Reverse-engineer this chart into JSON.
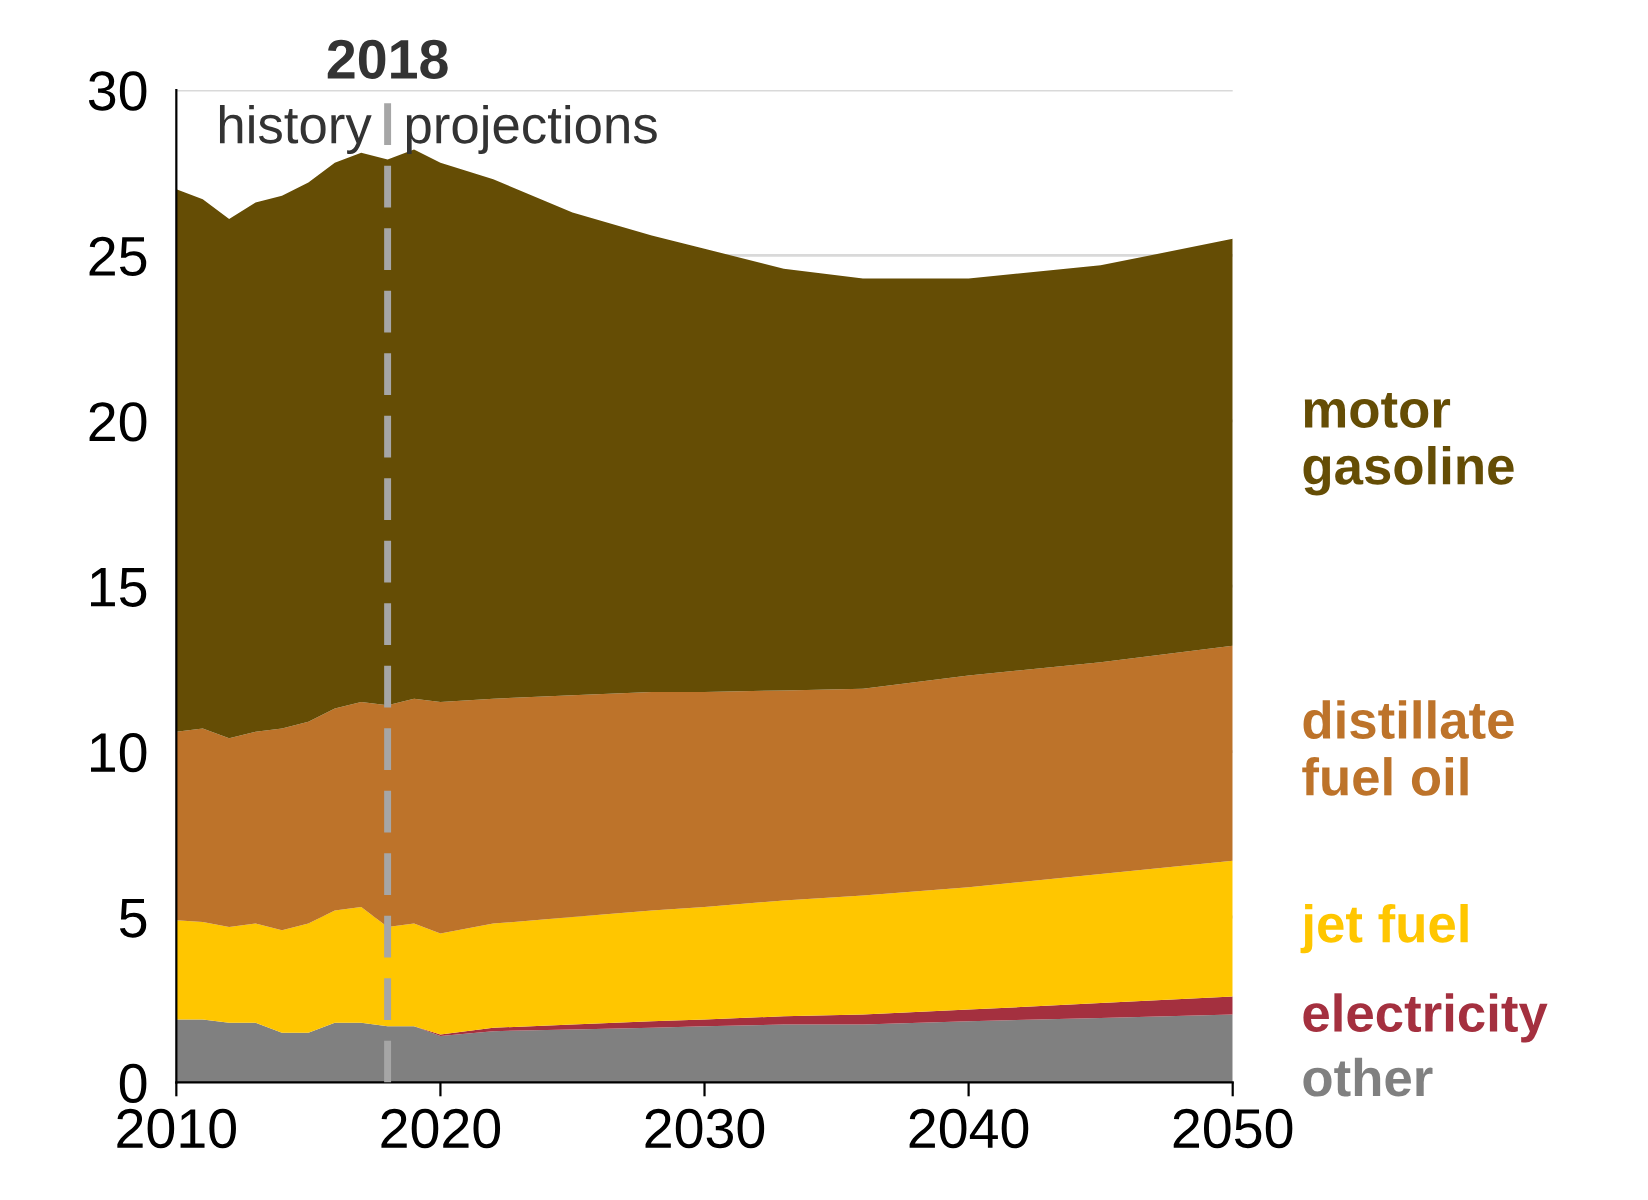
{
  "chart_data": {
    "type": "area",
    "stacked": true,
    "x": [
      2010,
      2011,
      2012,
      2013,
      2014,
      2015,
      2016,
      2017,
      2018,
      2019,
      2020,
      2022,
      2025,
      2028,
      2030,
      2033,
      2036,
      2040,
      2045,
      2050
    ],
    "series": [
      {
        "name": "other",
        "color": "#808080",
        "values": [
          1.9,
          1.9,
          1.8,
          1.8,
          1.5,
          1.5,
          1.8,
          1.8,
          1.7,
          1.7,
          1.4,
          1.55,
          1.6,
          1.65,
          1.7,
          1.75,
          1.75,
          1.85,
          1.95,
          2.05
        ]
      },
      {
        "name": "electricity",
        "color": "#a4303f",
        "values": [
          0,
          0,
          0,
          0,
          0,
          0,
          0,
          0,
          0,
          0,
          0.05,
          0.1,
          0.15,
          0.2,
          0.2,
          0.25,
          0.3,
          0.35,
          0.45,
          0.55
        ]
      },
      {
        "name": "jet fuel",
        "color": "#ffc600",
        "values": [
          3.0,
          2.95,
          2.9,
          3.0,
          3.1,
          3.3,
          3.4,
          3.5,
          3.0,
          3.1,
          3.05,
          3.15,
          3.25,
          3.35,
          3.4,
          3.5,
          3.6,
          3.7,
          3.9,
          4.1
        ]
      },
      {
        "name": "distillate\nfuel oil",
        "color": "#bd732a",
        "values": [
          5.7,
          5.85,
          5.7,
          5.8,
          6.1,
          6.1,
          6.1,
          6.2,
          6.7,
          6.8,
          7.0,
          6.8,
          6.7,
          6.6,
          6.5,
          6.35,
          6.25,
          6.4,
          6.4,
          6.5
        ]
      },
      {
        "name": "motor\ngasoline",
        "color": "#654d05",
        "values": [
          16.4,
          16.0,
          15.7,
          16.0,
          16.1,
          16.3,
          16.5,
          16.6,
          16.5,
          16.6,
          16.3,
          15.7,
          14.6,
          13.8,
          13.4,
          12.75,
          12.4,
          12.0,
          12.0,
          12.3
        ]
      }
    ],
    "xlim": [
      2010,
      2050
    ],
    "xticks": [
      2010,
      2020,
      2030,
      2040,
      2050
    ],
    "ylim": [
      0,
      30
    ],
    "yticks": [
      0,
      5,
      10,
      15,
      20,
      25,
      30
    ],
    "grid": "y",
    "legend": "right",
    "ref_lines": [
      {
        "axis": "x",
        "value": 2018,
        "label": "2018",
        "color": "#a6a6a6",
        "line_style": "dashed"
      }
    ],
    "annotations": [
      "history",
      "projections"
    ]
  }
}
